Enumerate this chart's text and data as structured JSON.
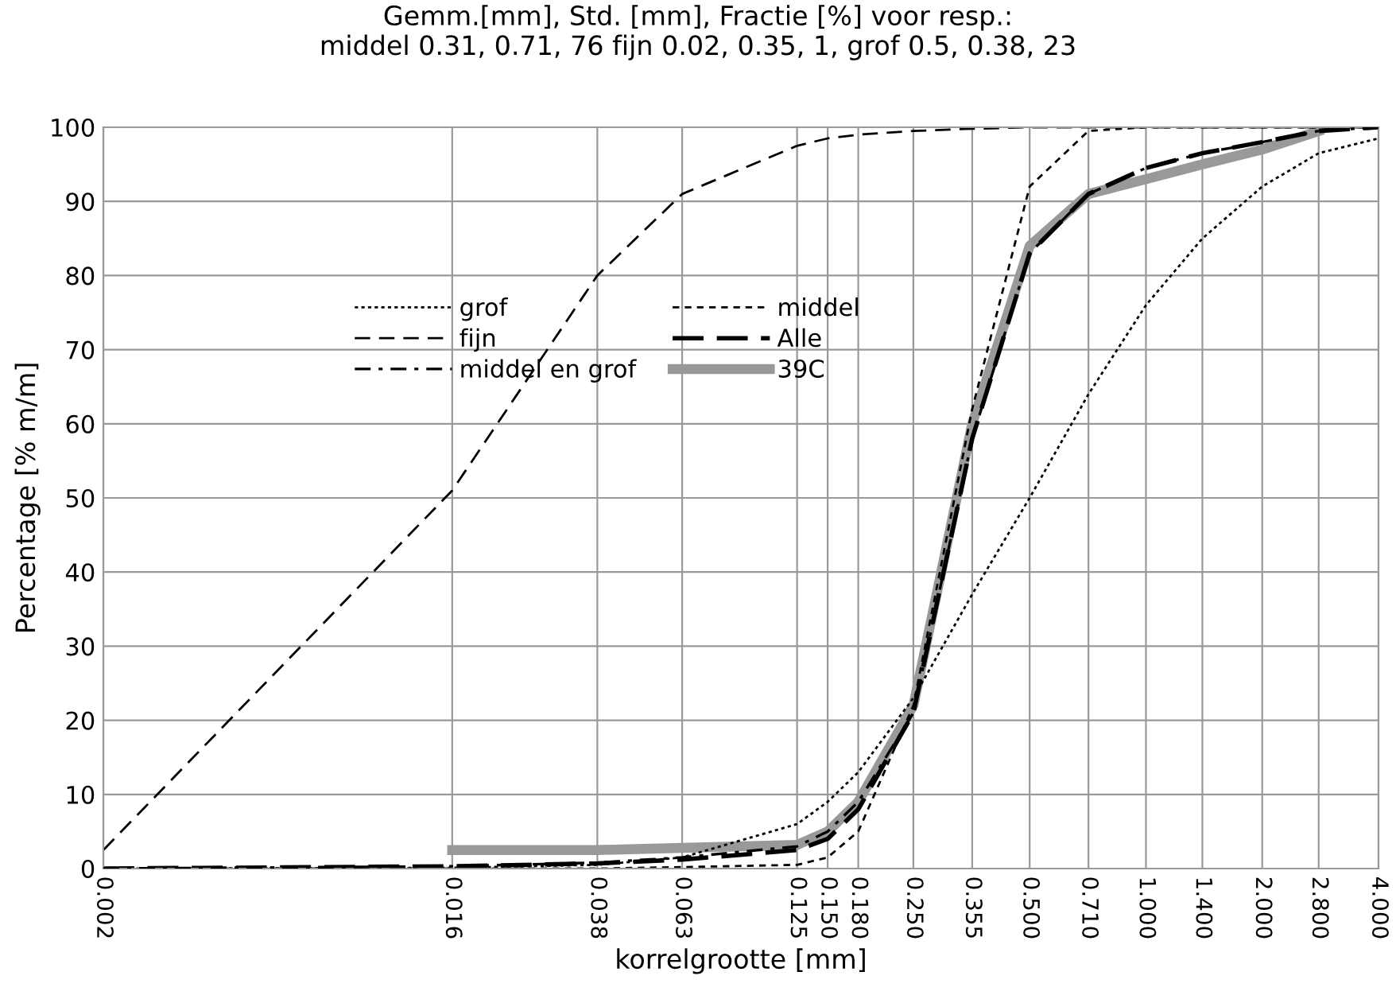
{
  "chart_data": {
    "type": "line",
    "title": "Gemm.[mm], Std. [mm], Fractie [%] voor resp.:\nmiddel 0.31, 0.71, 76 fijn 0.02, 0.35, 1, grof 0.5, 0.38, 23",
    "xlabel": "korrelgrootte [mm]",
    "ylabel": "Percentage [% m/m]",
    "log": "x",
    "grid": true,
    "legend": "top left",
    "x": [
      0.002,
      0.016,
      0.038,
      0.063,
      0.125,
      0.15,
      0.18,
      0.25,
      0.355,
      0.5,
      0.71,
      1.0,
      1.4,
      2.0,
      2.8,
      4.0
    ],
    "xlim": [
      0.002,
      4.0
    ],
    "xticks": [
      {
        "value": 0.002,
        "label": "0.002"
      },
      {
        "value": 0.016,
        "label": "0.016"
      },
      {
        "value": 0.038,
        "label": "0.038"
      },
      {
        "value": 0.063,
        "label": "0.063"
      },
      {
        "value": 0.125,
        "label": "0.125"
      },
      {
        "value": 0.15,
        "label": "0.150"
      },
      {
        "value": 0.18,
        "label": "0.180"
      },
      {
        "value": 0.25,
        "label": "0.250"
      },
      {
        "value": 0.355,
        "label": "0.355"
      },
      {
        "value": 0.5,
        "label": "0.500"
      },
      {
        "value": 0.71,
        "label": "0.710"
      },
      {
        "value": 1.0,
        "label": "1.000"
      },
      {
        "value": 1.4,
        "label": "1.400"
      },
      {
        "value": 2.0,
        "label": "2.000"
      },
      {
        "value": 2.8,
        "label": "2.800"
      },
      {
        "value": 4.0,
        "label": "4.000"
      }
    ],
    "ylim": [
      0,
      100
    ],
    "yticks": [
      0,
      10,
      20,
      30,
      40,
      50,
      60,
      70,
      80,
      90,
      100
    ],
    "series": [
      {
        "name": "grof",
        "color": "#000000",
        "line_style": "dotted",
        "values": [
          0,
          0.1,
          0.5,
          1.5,
          6,
          9,
          13,
          23,
          37,
          50,
          64,
          76,
          85,
          92,
          96.5,
          98.5
        ]
      },
      {
        "name": "middel",
        "color": "#000000",
        "line_style": "dashed",
        "values": [
          0,
          0,
          0,
          0.2,
          0.5,
          1.5,
          5,
          22,
          62,
          92,
          99.5,
          100,
          100,
          100,
          100,
          100
        ]
      },
      {
        "name": "fijn",
        "color": "#000000",
        "line_style": "longdash",
        "values": [
          2.5,
          51,
          80,
          91,
          97.5,
          98.5,
          99,
          99.5,
          99.8,
          100,
          100,
          100,
          100,
          100,
          100,
          100
        ]
      },
      {
        "name": "Alle",
        "color": "#000000",
        "line_style": "boldlongdash",
        "values": [
          0,
          0.3,
          0.7,
          1.2,
          2.5,
          4,
          8,
          21,
          58,
          83,
          91,
          94.5,
          96.5,
          98,
          99.5,
          100
        ]
      },
      {
        "name": "middel en grof",
        "color": "#000000",
        "line_style": "dashdot",
        "values": [
          0,
          0.3,
          0.8,
          1.5,
          3,
          5,
          9,
          21,
          58,
          83,
          91,
          94.5,
          96.5,
          98,
          99.5,
          100
        ]
      },
      {
        "name": "39C",
        "color": "#999999",
        "line_style": "solid",
        "values": [
          null,
          2.5,
          2.5,
          2.8,
          3.2,
          5,
          9,
          22,
          60,
          84,
          91,
          93,
          95,
          97,
          99.5,
          null
        ]
      }
    ]
  }
}
